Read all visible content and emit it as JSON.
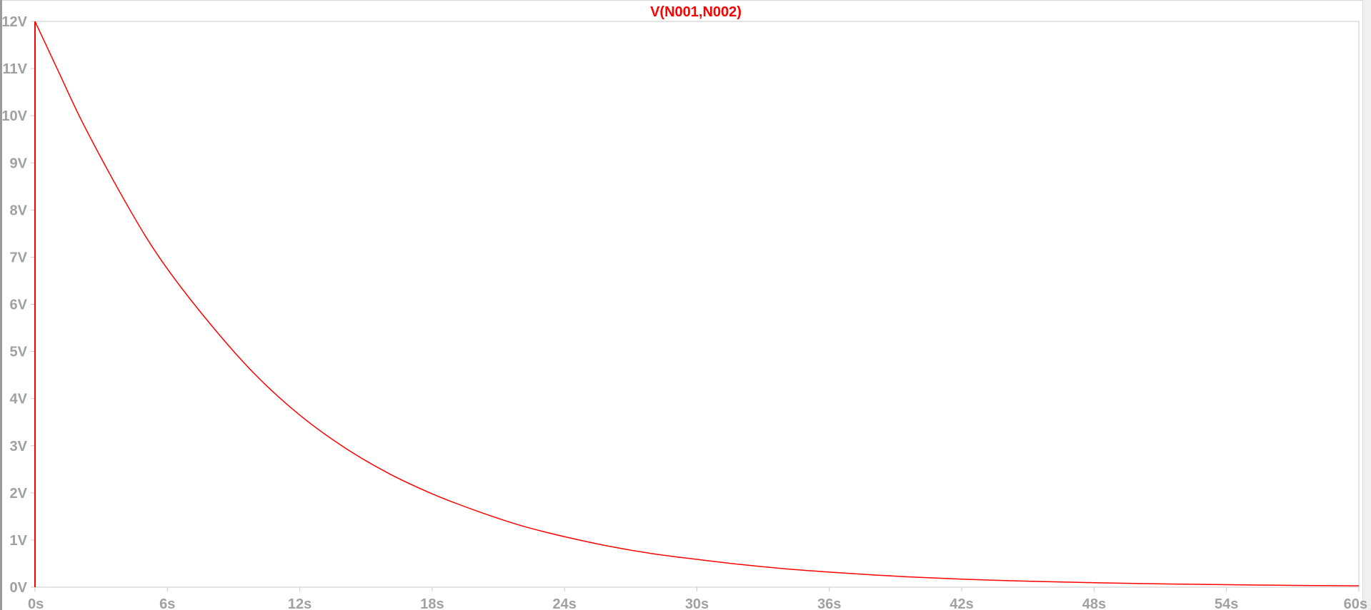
{
  "window": {
    "type": "waveform-viewer"
  },
  "colors": {
    "trace": "#ff0000",
    "axis_text": "#a0a0a0",
    "frame": "#c8c8c8",
    "background": "#ffffff"
  },
  "chart_data": {
    "type": "line",
    "title": "V(N001,N002)",
    "xlabel": "",
    "ylabel": "",
    "xlim": [
      0,
      60
    ],
    "ylim": [
      0,
      12
    ],
    "x_ticks": [
      0,
      6,
      12,
      18,
      24,
      30,
      36,
      42,
      48,
      54,
      60
    ],
    "x_tick_labels": [
      "0s",
      "6s",
      "12s",
      "18s",
      "24s",
      "30s",
      "36s",
      "42s",
      "48s",
      "54s",
      "60s"
    ],
    "y_ticks": [
      0,
      1,
      2,
      3,
      4,
      5,
      6,
      7,
      8,
      9,
      10,
      11,
      12
    ],
    "y_tick_labels": [
      "0V",
      "1V",
      "2V",
      "3V",
      "4V",
      "5V",
      "6V",
      "7V",
      "8V",
      "9V",
      "10V",
      "11V",
      "12V"
    ],
    "grid": false,
    "series": [
      {
        "name": "V(N001,N002)",
        "color": "#ff0000",
        "x": [
          0,
          0,
          1,
          2,
          3,
          4,
          5,
          6,
          8,
          10,
          12,
          14,
          16,
          18,
          20,
          22,
          24,
          26,
          28,
          30,
          32,
          34,
          36,
          38,
          40,
          42,
          44,
          46,
          48,
          50,
          52,
          54,
          56,
          58,
          60
        ],
        "y": [
          0,
          12.0,
          11.0,
          10.0,
          9.1,
          8.25,
          7.45,
          6.75,
          5.55,
          4.5,
          3.65,
          2.97,
          2.42,
          1.98,
          1.62,
          1.31,
          1.07,
          0.87,
          0.71,
          0.59,
          0.48,
          0.39,
          0.32,
          0.26,
          0.21,
          0.17,
          0.14,
          0.115,
          0.095,
          0.078,
          0.064,
          0.052,
          0.043,
          0.035,
          0.029
        ]
      }
    ]
  }
}
